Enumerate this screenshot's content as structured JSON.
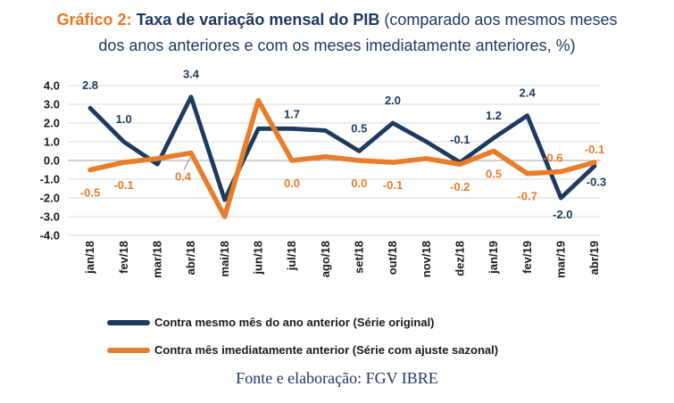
{
  "title": {
    "line1_prefix": "Gráfico 2:",
    "line1_bold": "Taxa de variação mensal do PIB",
    "line1_rest": "(comparado aos mesmos meses",
    "line2": "dos anos anteriores e com os meses imediatamente anteriores, %)"
  },
  "colors": {
    "navy": "#1F3A5F",
    "orange": "#E87D2B",
    "title_navy": "#1F3864",
    "title_orange": "#E87722",
    "grid": "#D9D9D9",
    "zero_line": "#A6A6A6",
    "axis_text": "#1A1A1A",
    "leader": "#999999"
  },
  "chart_data": {
    "type": "line",
    "title": "Taxa de variação mensal do PIB (comparado aos mesmos meses dos anos anteriores e com os meses imediatamente anteriores, %)",
    "categories": [
      "jan/18",
      "fev/18",
      "mar/18",
      "abr/18",
      "mai/18",
      "jun/18",
      "jul/18",
      "ago/18",
      "set/18",
      "out/18",
      "nov/18",
      "dez/18",
      "jan/19",
      "fev/19",
      "mar/19",
      "abr/19"
    ],
    "series": [
      {
        "name": "Contra mesmo mês do ano anterior (Série original)",
        "color": "#1F3A5F",
        "values": [
          2.8,
          1.0,
          -0.2,
          3.4,
          -2.1,
          1.7,
          1.7,
          1.6,
          0.5,
          2.0,
          1.0,
          -0.1,
          1.2,
          2.4,
          -2.0,
          -0.3
        ],
        "labels": [
          "2.8",
          "1.0",
          null,
          "3.4",
          null,
          null,
          "1.7",
          null,
          "0.5",
          "2.0",
          null,
          "-0.1",
          "1.2",
          "2.4",
          "-2.0",
          "-0.3"
        ]
      },
      {
        "name": "Contra mês imediatamente anterior (Série com ajuste sazonal)",
        "color": "#E87D2B",
        "values": [
          -0.5,
          -0.1,
          0.1,
          0.4,
          -3.0,
          3.2,
          0.0,
          0.2,
          0.0,
          -0.1,
          0.1,
          -0.2,
          0.5,
          -0.7,
          -0.6,
          -0.1
        ],
        "labels": [
          "-0.5",
          "-0.1",
          null,
          "0.4",
          null,
          null,
          "0.0",
          null,
          "0.0",
          "-0.1",
          null,
          "-0.2",
          "0.5",
          "-0.7",
          "-0.6",
          "-0.1"
        ]
      }
    ],
    "ylim": [
      -4.0,
      4.0
    ],
    "ytick_step": 1.0,
    "yticks": [
      "4.0",
      "3.0",
      "2.0",
      "1.0",
      "0.0",
      "-1.0",
      "-2.0",
      "-3.0",
      "-4.0"
    ],
    "grid": true,
    "legend_position": "bottom"
  },
  "footer": {
    "source": "Fonte e elaboração: FGV IBRE"
  }
}
